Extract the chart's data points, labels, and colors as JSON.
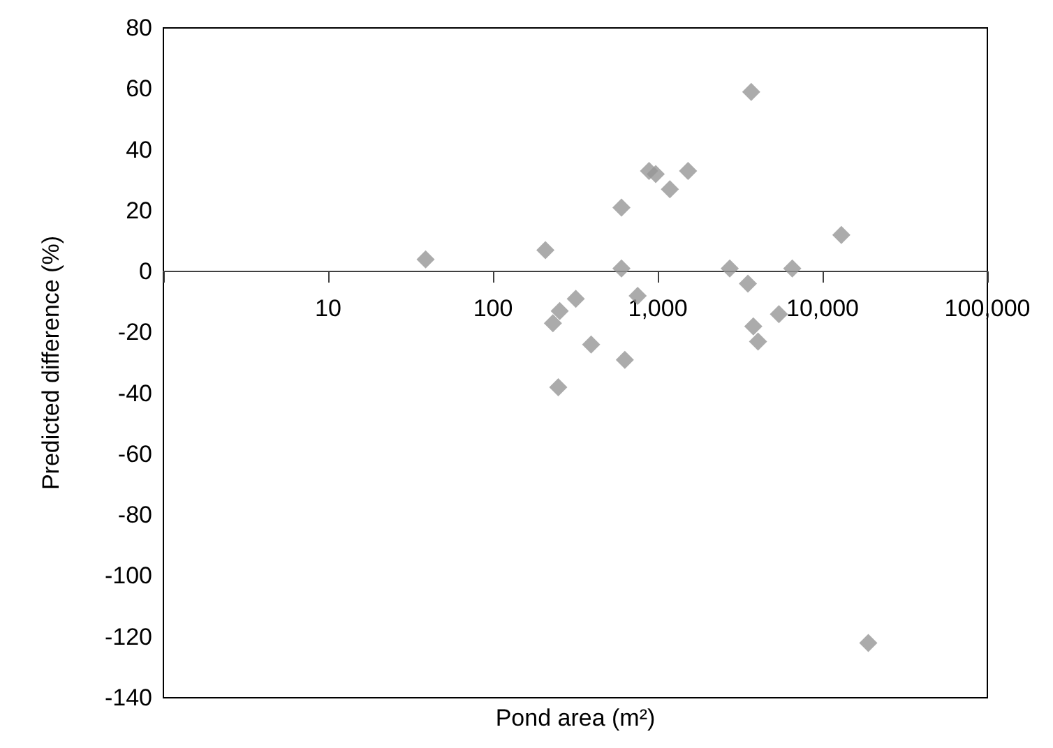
{
  "chart_data": {
    "type": "scatter",
    "xlabel": "Pond area (m²)",
    "ylabel": "Predicted difference (%)",
    "log": "x",
    "marker": "diamond",
    "grid": false,
    "xlim": [
      1,
      100000
    ],
    "ylim": [
      -140,
      80
    ],
    "xticks": [
      {
        "value": 1,
        "label": null
      },
      10,
      100,
      {
        "value": 1000,
        "label": "1,000"
      },
      {
        "value": 10000,
        "label": "10,000"
      },
      {
        "value": 100000,
        "label": "100,000"
      }
    ],
    "yticks": [
      -140,
      -120,
      -100,
      -80,
      -60,
      -40,
      -20,
      0,
      20,
      40,
      60,
      80
    ],
    "series": [
      {
        "color": "#969696",
        "x": [
          39,
          208,
          231,
          254,
          249,
          318,
          394,
          602,
          602,
          631,
          755,
          885,
          972,
          1184,
          1527,
          2733,
          3690,
          3522,
          3800,
          4057,
          5430,
          6550,
          13000,
          18950
        ],
        "values": [
          4,
          7,
          -17,
          -13,
          -38,
          -9,
          -24,
          21,
          1,
          -29,
          -8,
          33,
          32,
          27,
          33,
          1,
          59,
          -4,
          -18,
          -23,
          -14,
          1,
          12,
          -122
        ]
      }
    ]
  }
}
